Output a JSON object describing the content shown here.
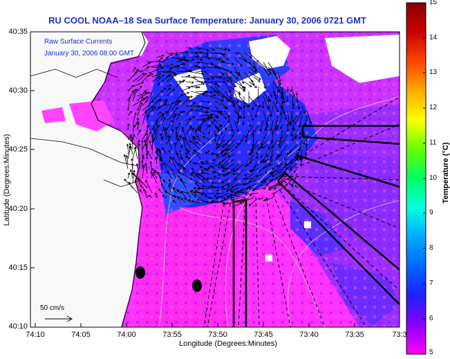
{
  "title": "RU COOL  NOAA–18  Sea Surface Temperature:  January 30, 2006 0721 GMT",
  "overlay": {
    "raw_currents_label": "Raw Surface Currents",
    "raw_currents_date": "January 30, 2006 08:00 GMT",
    "scale_label": "50 cm/s"
  },
  "axes": {
    "xlabel": "Longitude (Degrees:Minutes)",
    "ylabel": "Latitude (Degrees:Minutes)",
    "xticks": [
      "74:10",
      "74:05",
      "74:00",
      "73:55",
      "73:50",
      "73:45",
      "73:40",
      "73:35",
      "73:3"
    ],
    "yticks": [
      "40:35",
      "40:30",
      "40:25",
      "40:20",
      "40:15",
      "40:10"
    ]
  },
  "colorbar": {
    "label": "Temperature (°C)",
    "ticks": [
      "15",
      "14",
      "13",
      "12",
      "11",
      "10",
      "9",
      "8",
      "7",
      "6",
      "5"
    ],
    "min": 5,
    "max": 15,
    "colors": [
      "#ff00ff",
      "#8800ff",
      "#2020ff",
      "#0066ff",
      "#00aaff",
      "#00ffdd",
      "#00ff66",
      "#66ff00",
      "#ffff00",
      "#ffaa00",
      "#ff4400",
      "#cc0000",
      "#880000"
    ]
  },
  "colors": {
    "title": "#1a2fd0",
    "land": "#f8f8f8",
    "warm_water": "#ff33ff",
    "cool_water": "#2030ff",
    "vectors": "#000000"
  }
}
